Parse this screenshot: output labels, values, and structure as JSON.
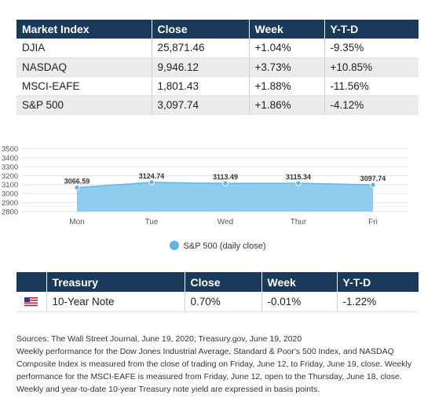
{
  "market_table": {
    "headers": [
      "Market Index",
      "Close",
      "Week",
      "Y-T-D"
    ],
    "rows": [
      {
        "index": "DJIA",
        "close": "25,871.46",
        "week": "+1.04%",
        "ytd": "-9.35%"
      },
      {
        "index": "NASDAQ",
        "close": "9,946.12",
        "week": "+3.73%",
        "ytd": "+10.85%"
      },
      {
        "index": "MSCI-EAFE",
        "close": "1,801.43",
        "week": "+1.88%",
        "ytd": "-11.56%"
      },
      {
        "index": "S&P 500",
        "close": "3,097.74",
        "week": "+1.86%",
        "ytd": "-4.12%"
      }
    ]
  },
  "chart_data": {
    "type": "area",
    "categories": [
      "Mon",
      "Tue",
      "Wed",
      "Thur",
      "Fri"
    ],
    "series": [
      {
        "name": "S&P 500 (daily close)",
        "values": [
          3066.59,
          3124.74,
          3113.49,
          3115.34,
          3097.74
        ]
      }
    ],
    "data_labels": [
      "3066.59",
      "3124.74",
      "3113.49",
      "3115.34",
      "3097.74"
    ],
    "y_ticks": [
      "2800",
      "2900",
      "3000",
      "3100",
      "3200",
      "3300",
      "3400",
      "3500"
    ],
    "ylim": [
      2800,
      3500
    ],
    "grid": true,
    "legend": "bottom-center",
    "colors": {
      "fill": "#8fcdef",
      "line": "#63b4e0",
      "marker": "#63b4e0"
    }
  },
  "legend_label": "S&P 500 (daily close)",
  "treasury_table": {
    "headers": [
      "",
      "Treasury",
      "Close",
      "Week",
      "Y-T-D"
    ],
    "rows": [
      {
        "flag": "us-flag-icon",
        "name": "10-Year Note",
        "close": "0.70%",
        "week": "-0.01%",
        "ytd": "-1.22%"
      }
    ]
  },
  "notes": {
    "sources": "Sources: The Wall Street Journal, June 19, 2020; Treasury.gov, June 19, 2020",
    "body": "Weekly performance for the Dow Jones Industrial Average, Standard & Poor's 500 Index, and NASDAQ Composite Index is measured from the close of trading on Friday, June 12, to Friday, June 19, close. Weekly performance for the MSCI-EAFE is measured from Friday, June 12, open to the Thursday, June 18, close. Weekly and year-to-date 10-year Treasury note yield are expressed in basis points."
  },
  "colors": {
    "header_bg": "#1a3a5c",
    "alt_row_bg": "#ececec"
  }
}
